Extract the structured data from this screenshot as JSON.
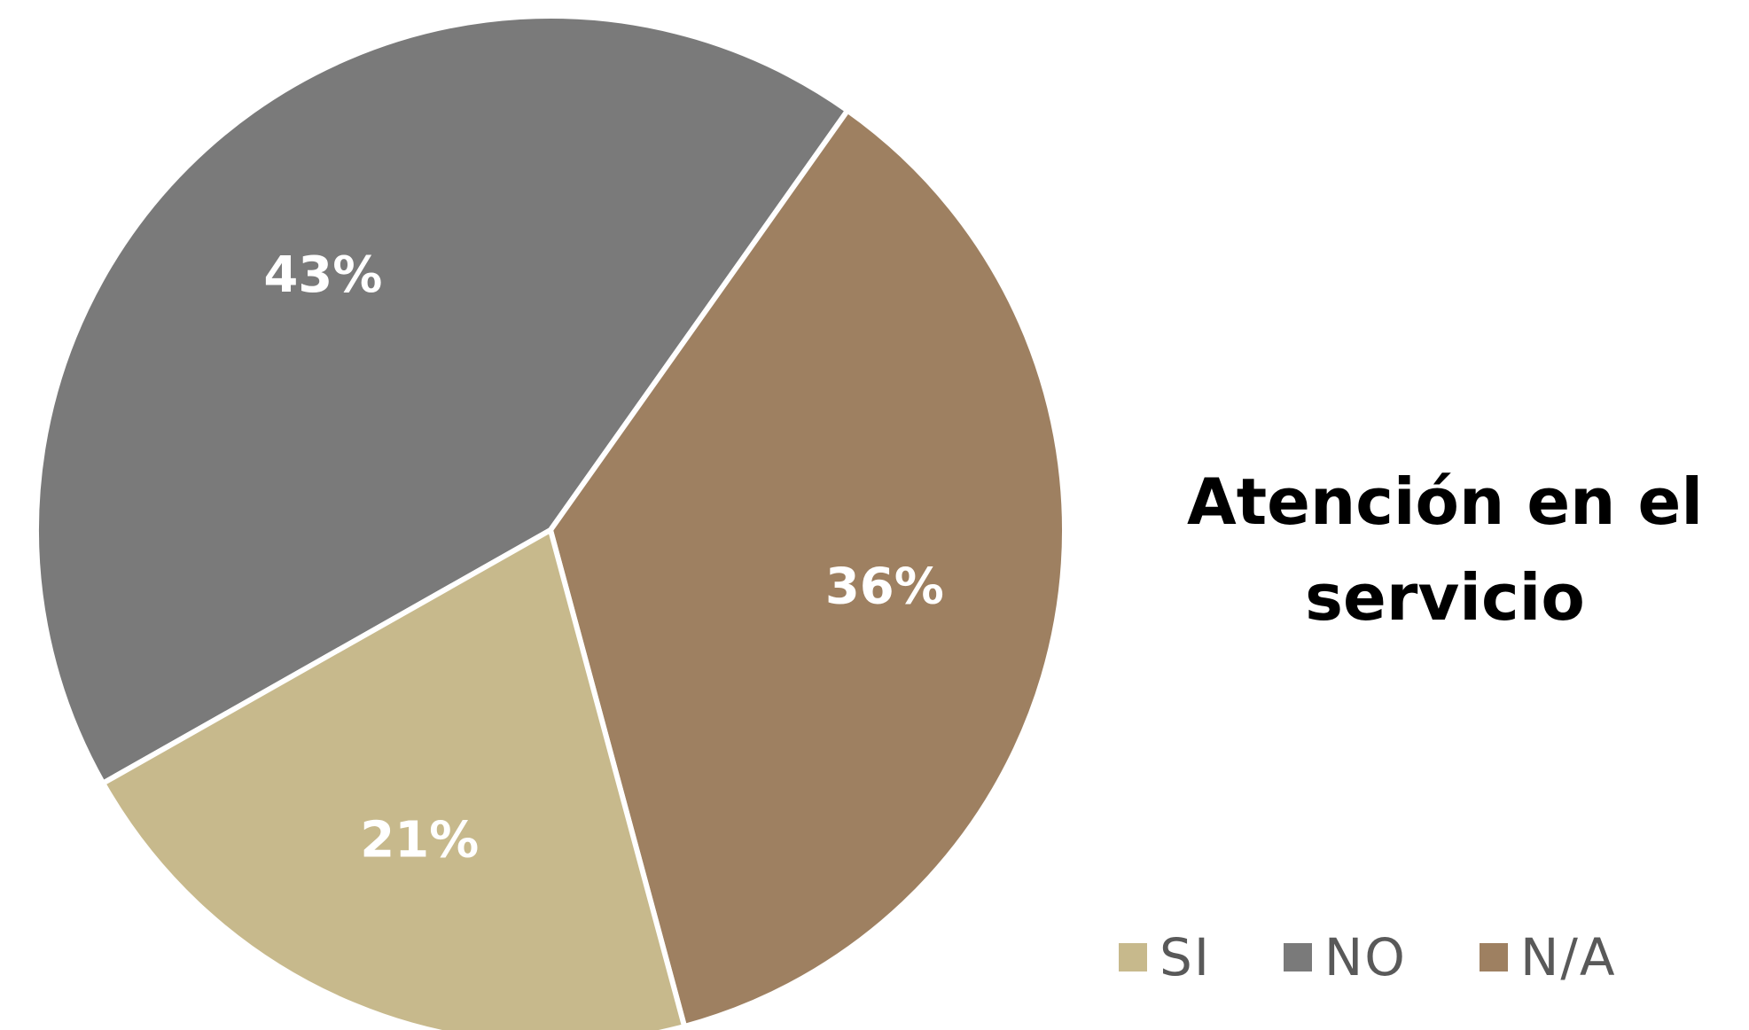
{
  "chart_data": {
    "type": "pie",
    "title": "Atención en el servicio",
    "legend_position": "bottom-right",
    "slices": [
      {
        "name": "SI",
        "value": 21,
        "label": "21%",
        "color": "#C7B98C"
      },
      {
        "name": "NO",
        "value": 43,
        "label": "43%",
        "color": "#7A7A7A"
      },
      {
        "name": "N/A",
        "value": 36,
        "label": "36%",
        "color": "#9E8061"
      }
    ]
  }
}
